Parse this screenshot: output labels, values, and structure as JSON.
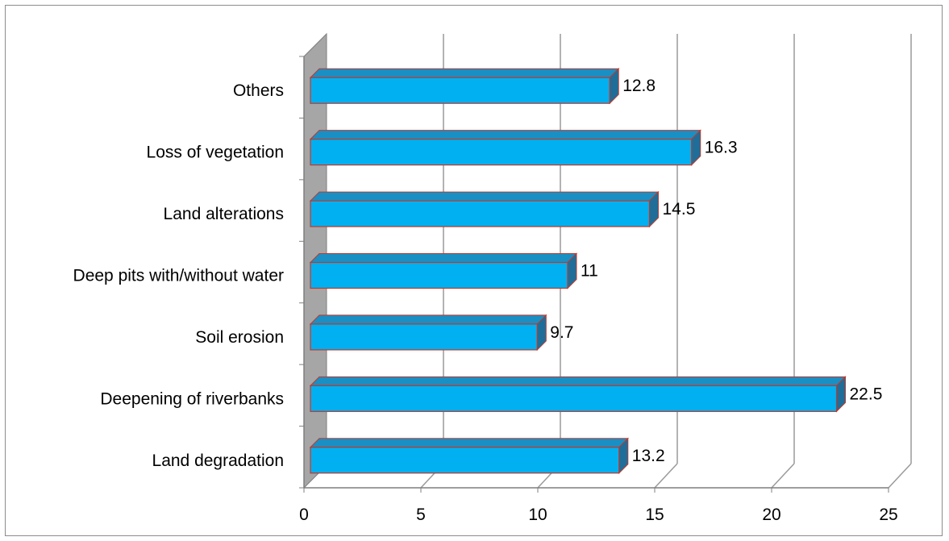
{
  "chart_data": {
    "type": "bar",
    "orientation": "horizontal",
    "three_d": true,
    "categories": [
      "Land degradation",
      "Deepening of riverbanks",
      "Soil erosion",
      "Deep pits with/without water",
      "Land alterations",
      "Loss of vegetation",
      "Others"
    ],
    "values": [
      13.2,
      22.5,
      9.7,
      11,
      14.5,
      16.3,
      12.8
    ],
    "value_labels": [
      "13.2",
      "22.5",
      "9.7",
      "11",
      "14.5",
      "16.3",
      "12.8"
    ],
    "xlim": [
      0,
      25
    ],
    "xticks": [
      "0",
      "5",
      "10",
      "15",
      "20",
      "25"
    ],
    "title": "",
    "xlabel": "",
    "ylabel": "",
    "grid": true,
    "legend": "none",
    "colors": {
      "bar_front": "#00b0f0",
      "bar_top": "#1a8fc4",
      "bar_side": "#1f6e99",
      "bar_edge": "#c0392b",
      "wall": "#a6a6a6",
      "grid": "#9a9a9a",
      "frame": "#8c8c8c"
    }
  }
}
